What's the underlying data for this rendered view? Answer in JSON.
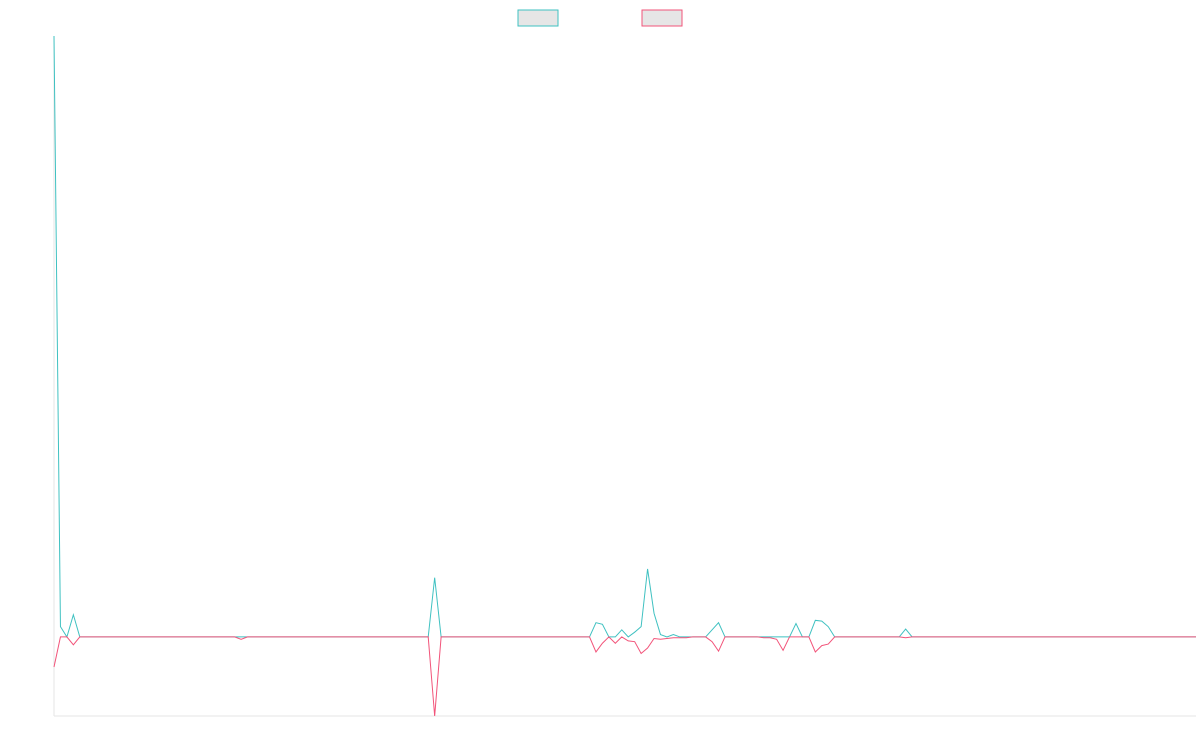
{
  "chart_data": {
    "type": "line",
    "title": "",
    "xlabel": "",
    "ylabel": "",
    "legend": {
      "position": "top-center",
      "labels": [
        "",
        ""
      ]
    },
    "grid": false,
    "ylim": [
      -1.0,
      7.6
    ],
    "series": [
      {
        "color": "#3fc1c1",
        "fill": "#e6e6e6",
        "values": [
          7.6,
          0.13,
          0,
          0.28,
          0,
          0,
          0,
          0,
          0,
          0,
          0,
          0,
          0,
          0,
          0,
          0,
          0,
          0,
          0,
          0,
          0,
          0,
          0,
          0,
          0,
          0,
          0,
          0,
          0,
          0,
          0,
          0,
          0,
          0,
          0,
          0,
          0,
          0,
          0,
          0,
          0,
          0,
          0,
          0,
          0,
          0,
          0,
          0,
          0,
          0,
          0,
          0,
          0,
          0,
          0,
          0,
          0,
          0,
          0,
          0.75,
          0,
          0,
          0,
          0,
          0,
          0,
          0,
          0,
          0,
          0,
          0,
          0,
          0,
          0,
          0,
          0,
          0,
          0,
          0,
          0,
          0,
          0,
          0,
          0,
          0.18,
          0.16,
          0,
          0,
          0.09,
          0,
          0.06,
          0.13,
          0.86,
          0.3,
          0.03,
          0,
          0.03,
          0,
          0,
          0,
          0,
          0,
          0.09,
          0.18,
          0,
          0,
          0,
          0,
          0,
          0,
          0,
          0,
          0,
          0,
          0,
          0.17,
          0,
          0,
          0.21,
          0.2,
          0.13,
          0,
          0,
          0,
          0,
          0,
          0,
          0,
          0,
          0,
          0,
          0,
          0.1,
          0,
          0,
          0,
          0,
          0,
          0,
          0,
          0,
          0,
          0,
          0,
          0,
          0,
          0,
          0,
          0,
          0,
          0,
          0,
          0,
          0,
          0,
          0,
          0,
          0,
          0,
          0,
          0,
          0,
          0,
          0,
          0,
          0,
          0,
          0,
          0,
          0,
          0,
          0,
          0,
          0,
          0,
          0,
          0,
          0
        ]
      },
      {
        "color": "#f2547a",
        "fill": "#e6e6e6",
        "values": [
          -0.38,
          0,
          0,
          -0.1,
          0,
          0,
          0,
          0,
          0,
          0,
          0,
          0,
          0,
          0,
          0,
          0,
          0,
          0,
          0,
          0,
          0,
          0,
          0,
          0,
          0,
          0,
          0,
          0,
          0,
          -0.03,
          0,
          0,
          0,
          0,
          0,
          0,
          0,
          0,
          0,
          0,
          0,
          0,
          0,
          0,
          0,
          0,
          0,
          0,
          0,
          0,
          0,
          0,
          0,
          0,
          0,
          0,
          0,
          0,
          0,
          -1.0,
          0,
          0,
          0,
          0,
          0,
          0,
          0,
          0,
          0,
          0,
          0,
          0,
          0,
          0,
          0,
          0,
          0,
          0,
          0,
          0,
          0,
          0,
          0,
          0,
          -0.19,
          -0.08,
          0,
          -0.08,
          0,
          -0.05,
          -0.06,
          -0.21,
          -0.14,
          -0.02,
          -0.03,
          -0.02,
          -0.01,
          -0.01,
          -0.01,
          0,
          0,
          0,
          -0.06,
          -0.18,
          0,
          0,
          0,
          0,
          0,
          0,
          -0.01,
          -0.01,
          -0.03,
          -0.17,
          0,
          0,
          0,
          0,
          -0.19,
          -0.11,
          -0.09,
          0,
          0,
          0,
          0,
          0,
          0,
          0,
          0,
          0,
          0,
          0,
          -0.01,
          0,
          0,
          0,
          0,
          0,
          0,
          0,
          0,
          0,
          0,
          0,
          0,
          0,
          0,
          0,
          0,
          0,
          0,
          0,
          0,
          0,
          0,
          0,
          0,
          0,
          0,
          0,
          0,
          0,
          0,
          0,
          0,
          0,
          0,
          0,
          0,
          0,
          0,
          0,
          0,
          0,
          0,
          0,
          0,
          0
        ]
      }
    ]
  }
}
